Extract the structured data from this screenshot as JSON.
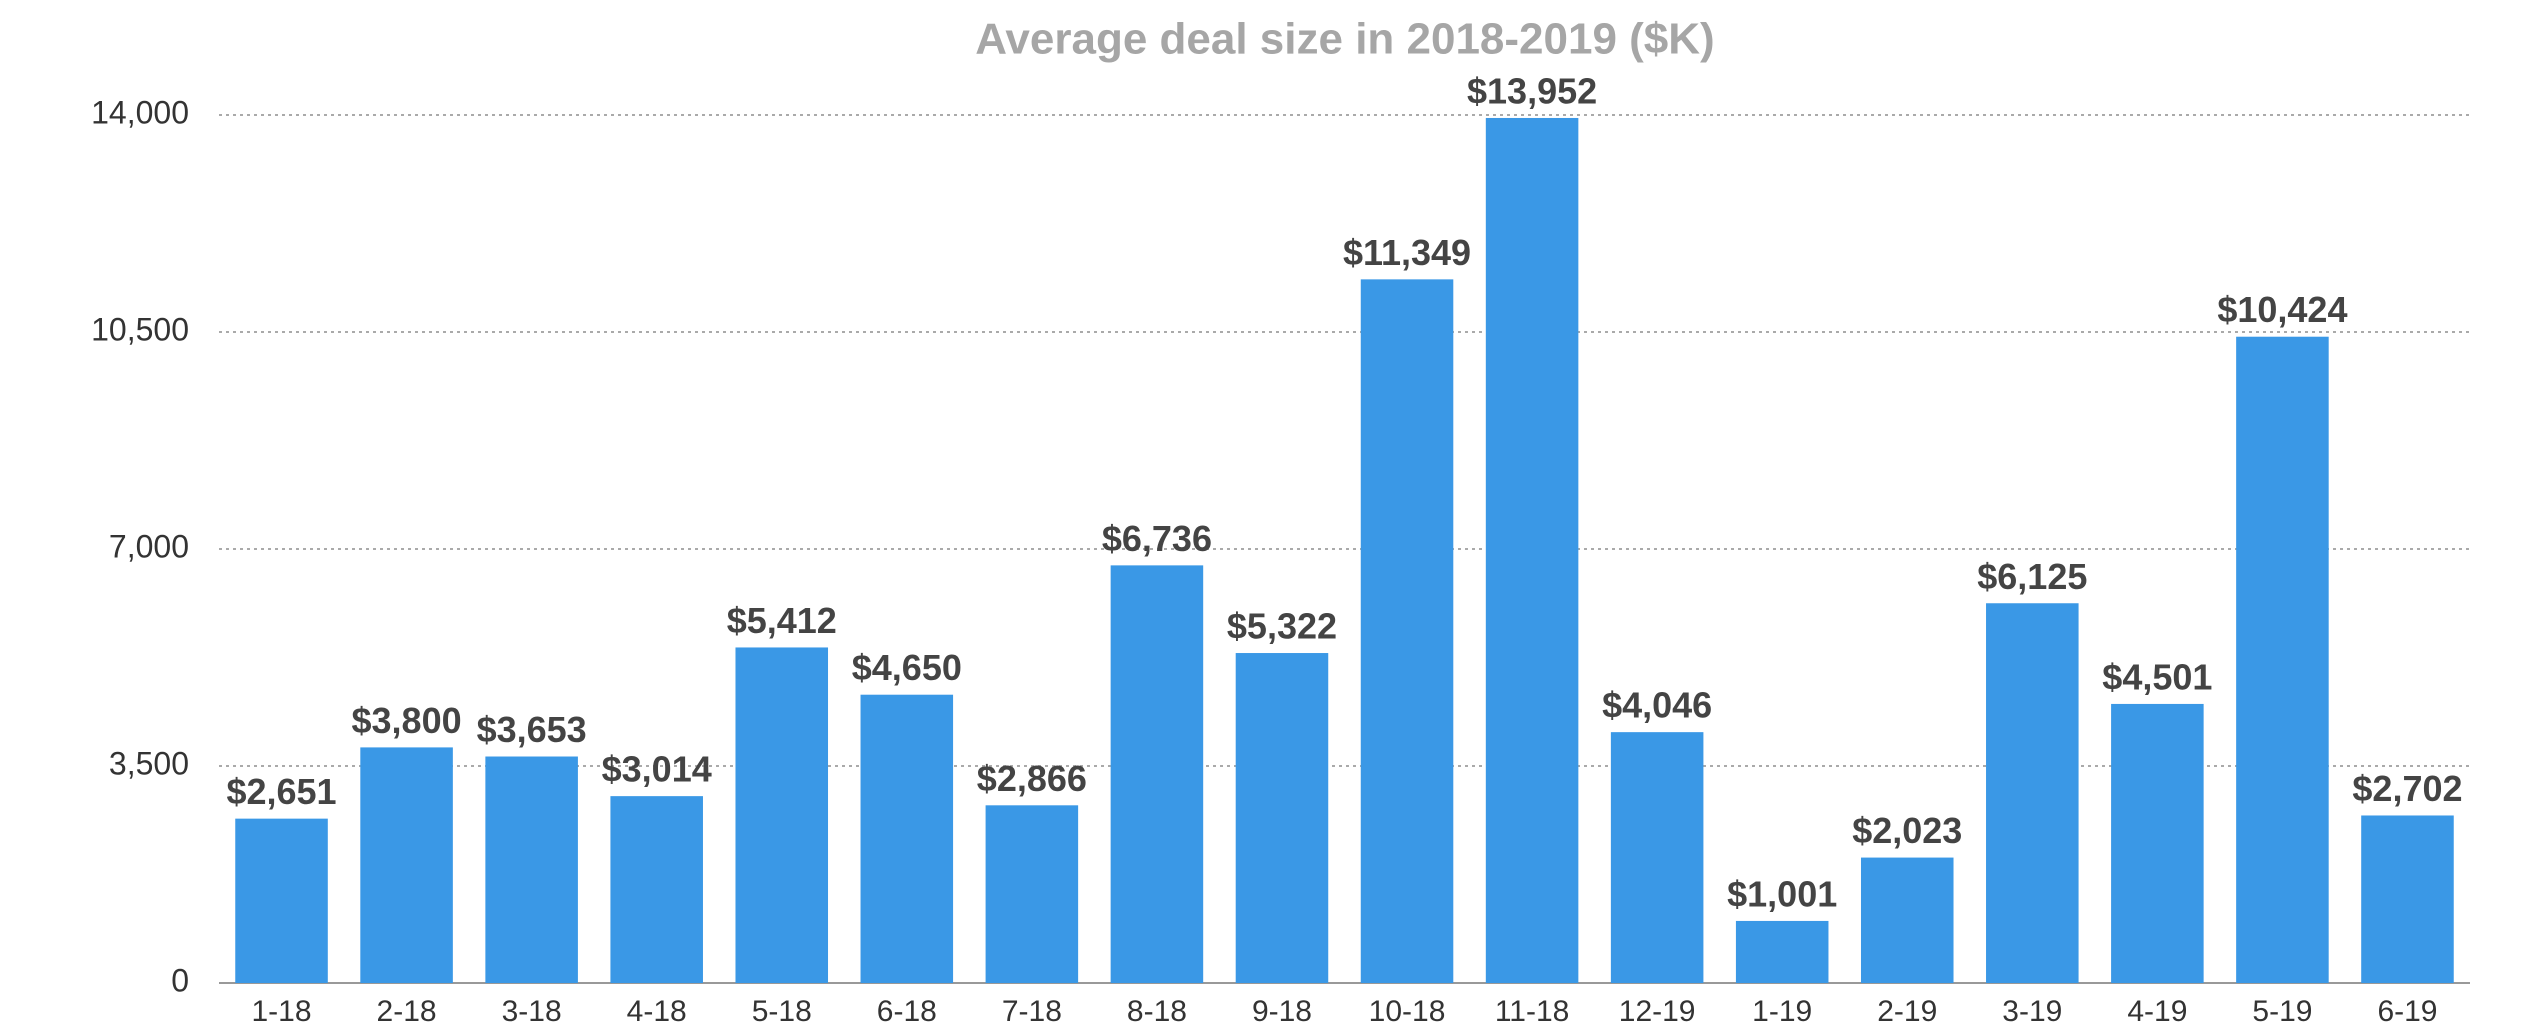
{
  "chart_data": {
    "type": "bar",
    "title": "Average deal size in 2018-2019 ($K)",
    "categories": [
      "1-18",
      "2-18",
      "3-18",
      "4-18",
      "5-18",
      "6-18",
      "7-18",
      "8-18",
      "9-18",
      "10-18",
      "11-18",
      "12-19",
      "1-19",
      "2-19",
      "3-19",
      "4-19",
      "5-19",
      "6-19"
    ],
    "values": [
      2651,
      3800,
      3653,
      3014,
      5412,
      4650,
      2866,
      6736,
      5322,
      11349,
      13952,
      4046,
      1001,
      2023,
      6125,
      4501,
      10424,
      2702
    ],
    "value_labels": [
      "$2,651",
      "$3,800",
      "$3,653",
      "$3,014",
      "$5,412",
      "$4,650",
      "$2,866",
      "$6,736",
      "$5,322",
      "$11,349",
      "$13,952",
      "$4,046",
      "$1,001",
      "$2,023",
      "$6,125",
      "$4,501",
      "$10,424",
      "$2,702"
    ],
    "color": "#3a98e6",
    "ylim": [
      0,
      14000
    ],
    "yticks": [
      0,
      {
        "value": 3500,
        "label": "3,500"
      },
      {
        "value": 7000,
        "label": "7,000"
      },
      {
        "value": 10500,
        "label": "10,500"
      },
      {
        "value": 14000,
        "label": "14,000"
      }
    ],
    "grid": true
  }
}
